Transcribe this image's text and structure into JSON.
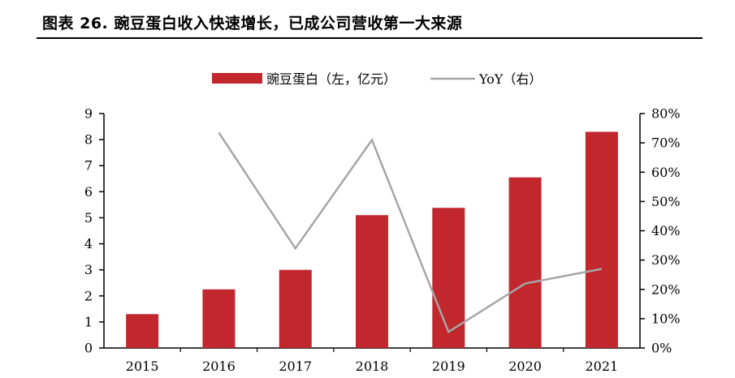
{
  "title": "图表 26. 豌豆蛋白收入快速增长，已成公司营收第一大来源",
  "colors": {
    "bar": "#C1272D",
    "line": "#A6A6A6",
    "axis": "#000000"
  },
  "chart_data": {
    "type": "bar",
    "categories": [
      "2015",
      "2016",
      "2017",
      "2018",
      "2019",
      "2020",
      "2021"
    ],
    "series": [
      {
        "name": "豌豆蛋白（左，亿元）",
        "type": "bar",
        "axis": "left",
        "values": [
          1.3,
          2.25,
          3.0,
          5.1,
          5.38,
          6.55,
          8.3
        ]
      },
      {
        "name": "YoY（右）",
        "type": "line",
        "axis": "right",
        "values": [
          null,
          0.735,
          0.34,
          0.71,
          0.055,
          0.22,
          0.27
        ]
      }
    ],
    "y_left": {
      "min": 0,
      "max": 9,
      "ticks": [
        "0",
        "1",
        "2",
        "3",
        "4",
        "5",
        "6",
        "7",
        "8",
        "9"
      ]
    },
    "y_right": {
      "min": 0,
      "max": 0.8,
      "ticks": [
        "0%",
        "10%",
        "20%",
        "30%",
        "40%",
        "50%",
        "60%",
        "70%",
        "80%"
      ]
    },
    "grid": false,
    "legend_position": "top-center"
  }
}
